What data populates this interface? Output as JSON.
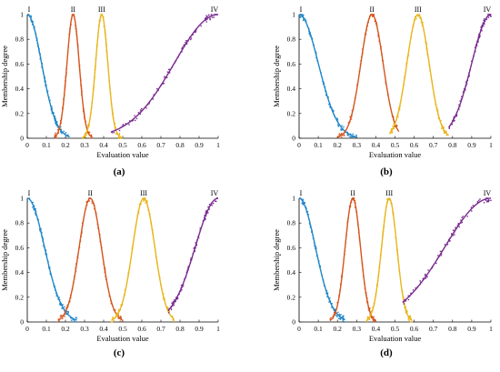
{
  "colors": {
    "I": "#1f86c8",
    "II": "#d6541c",
    "III": "#e9b41a",
    "IV": "#7a2b8f",
    "axis": "#000000"
  },
  "chart_data": [
    {
      "type": "line",
      "caption": "(a)",
      "xlabel": "Evaluation value",
      "ylabel": "Membership degree",
      "xlim": [
        0,
        1
      ],
      "ylim": [
        0,
        1
      ],
      "xticks": [
        "0",
        "0.1",
        "0.2",
        "0.3",
        "0.4",
        "0.5",
        "0.6",
        "0.7",
        "0.8",
        "0.9",
        "1"
      ],
      "yticks": [
        "0",
        "0.2",
        "0.4",
        "0.6",
        "0.8",
        "1"
      ],
      "grid": false,
      "series": [
        {
          "name": "I",
          "center": 0.0,
          "spread": 0.075,
          "x_range": [
            0.0,
            0.22
          ]
        },
        {
          "name": "II",
          "center": 0.24,
          "spread": 0.032,
          "x_range": [
            0.14,
            0.34
          ]
        },
        {
          "name": "III",
          "center": 0.39,
          "spread": 0.032,
          "x_range": [
            0.29,
            0.5
          ]
        },
        {
          "name": "IV",
          "center": 1.0,
          "spread": 0.23,
          "x_range": [
            0.44,
            1.0
          ]
        }
      ]
    },
    {
      "type": "line",
      "caption": "(b)",
      "xlabel": "Evaluation value",
      "ylabel": "Membership degree",
      "xlim": [
        0,
        1
      ],
      "ylim": [
        0,
        1
      ],
      "xticks": [
        "0",
        "0.1",
        "0.2",
        "0.3",
        "0.4",
        "0.5",
        "0.6",
        "0.7",
        "0.8",
        "0.9",
        "1"
      ],
      "yticks": [
        "0",
        "0.2",
        "0.4",
        "0.6",
        "0.8",
        "1"
      ],
      "grid": false,
      "series": [
        {
          "name": "I",
          "center": 0.0,
          "spread": 0.1,
          "x_range": [
            0.0,
            0.3
          ]
        },
        {
          "name": "II",
          "center": 0.38,
          "spread": 0.058,
          "x_range": [
            0.2,
            0.52
          ]
        },
        {
          "name": "III",
          "center": 0.62,
          "spread": 0.058,
          "x_range": [
            0.47,
            0.78
          ]
        },
        {
          "name": "IV",
          "center": 1.0,
          "spread": 0.1,
          "x_range": [
            0.78,
            1.0
          ]
        }
      ]
    },
    {
      "type": "line",
      "caption": "(c)",
      "xlabel": "Evaluation value",
      "ylabel": "Membership degree",
      "xlim": [
        0,
        1
      ],
      "ylim": [
        0,
        1
      ],
      "xticks": [
        "0",
        "0.1",
        "0.2",
        "0.3",
        "0.4",
        "0.5",
        "0.6",
        "0.7",
        "0.8",
        "0.9",
        "1"
      ],
      "yticks": [
        "0",
        "0.2",
        "0.4",
        "0.6",
        "0.8",
        "1"
      ],
      "grid": false,
      "series": [
        {
          "name": "I",
          "center": 0.0,
          "spread": 0.09,
          "x_range": [
            0.0,
            0.26
          ]
        },
        {
          "name": "II",
          "center": 0.33,
          "spread": 0.058,
          "x_range": [
            0.16,
            0.5
          ]
        },
        {
          "name": "III",
          "center": 0.61,
          "spread": 0.058,
          "x_range": [
            0.44,
            0.77
          ]
        },
        {
          "name": "IV",
          "center": 1.0,
          "spread": 0.12,
          "x_range": [
            0.74,
            1.0
          ]
        }
      ]
    },
    {
      "type": "line",
      "caption": "(d)",
      "xlabel": "Evaluation value",
      "ylabel": "Membership degree",
      "xlim": [
        0,
        1
      ],
      "ylim": [
        0,
        1
      ],
      "xticks": [
        "0",
        "0.1",
        "0.2",
        "0.3",
        "0.4",
        "0.5",
        "0.6",
        "0.7",
        "0.8",
        "0.9",
        "1"
      ],
      "yticks": [
        "0",
        "0.2",
        "0.4",
        "0.6",
        "0.8",
        "1"
      ],
      "grid": false,
      "series": [
        {
          "name": "I",
          "center": 0.0,
          "spread": 0.085,
          "x_range": [
            0.0,
            0.24
          ]
        },
        {
          "name": "II",
          "center": 0.28,
          "spread": 0.04,
          "x_range": [
            0.16,
            0.4
          ]
        },
        {
          "name": "III",
          "center": 0.47,
          "spread": 0.04,
          "x_range": [
            0.35,
            0.59
          ]
        },
        {
          "name": "IV",
          "center": 1.0,
          "spread": 0.24,
          "x_range": [
            0.54,
            1.0
          ]
        }
      ]
    }
  ]
}
